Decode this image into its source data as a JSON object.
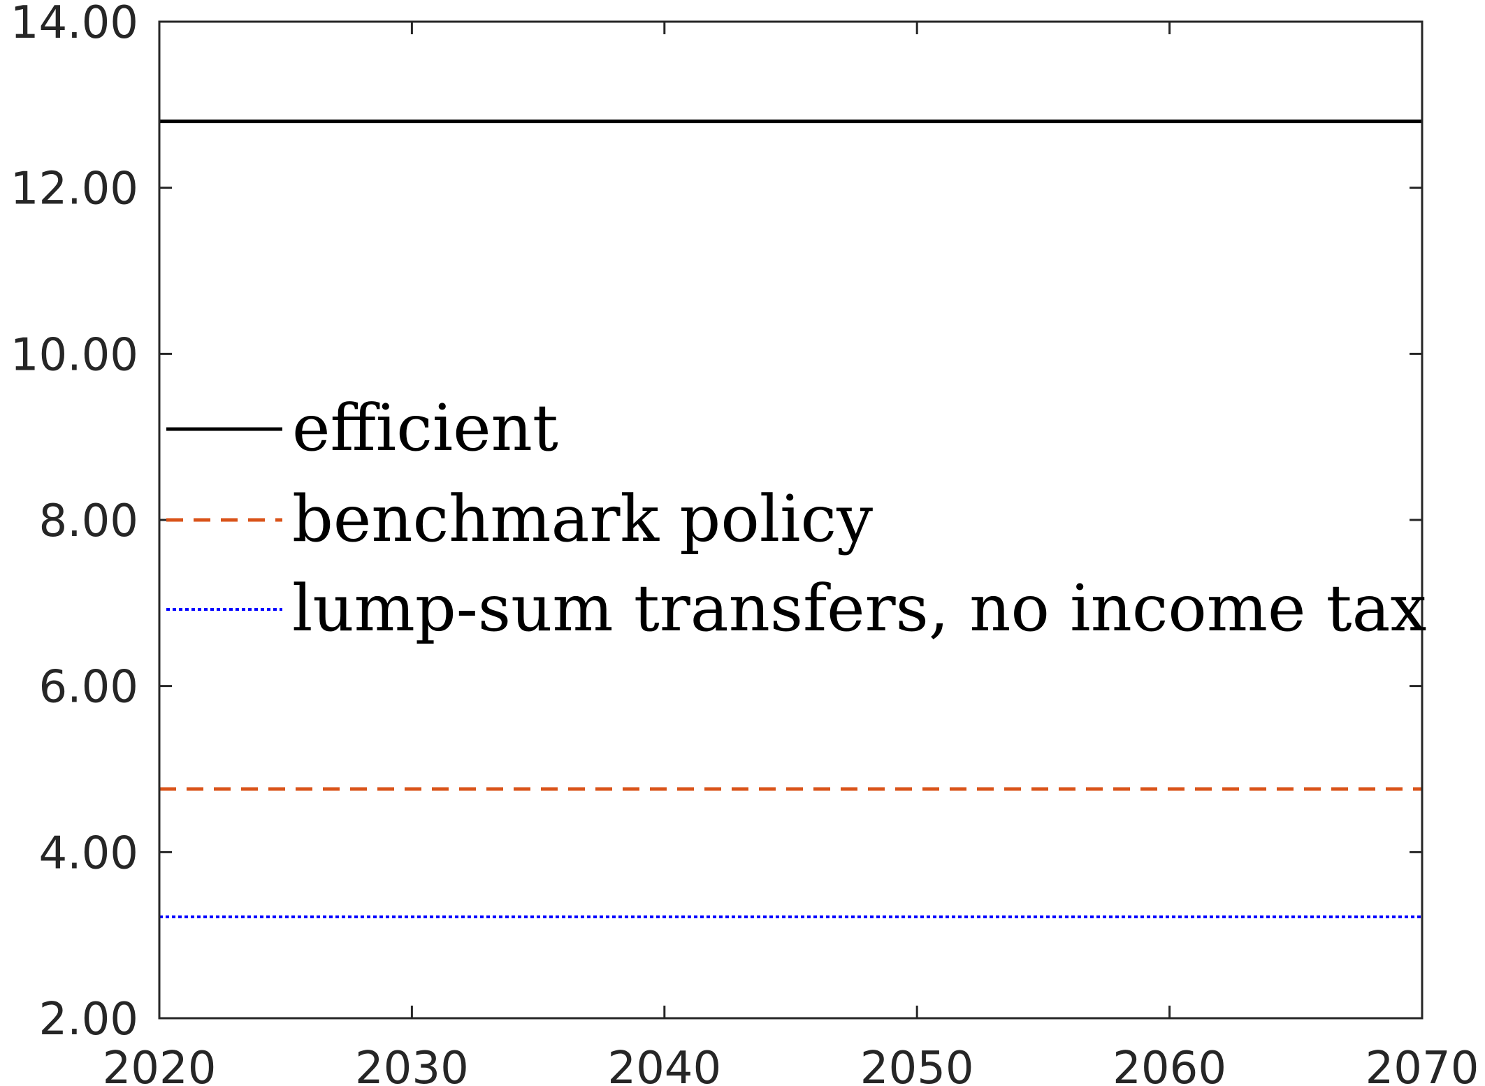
{
  "chart_data": {
    "type": "line",
    "x": [
      2020,
      2070
    ],
    "xlim": [
      2020,
      2070
    ],
    "ylim": [
      2,
      14
    ],
    "xticks": [
      2020,
      2030,
      2040,
      2050,
      2060,
      2070
    ],
    "yticks": [
      2,
      4,
      6,
      8,
      10,
      12,
      14
    ],
    "xtick_labels": [
      "2020",
      "2030",
      "2040",
      "2050",
      "2060",
      "2070"
    ],
    "ytick_labels": [
      "2.00",
      "4.00",
      "6.00",
      "8.00",
      "10.00",
      "12.00",
      "14.00"
    ],
    "grid": false,
    "legend_position": "center-left",
    "series": [
      {
        "name": "efficient",
        "values": [
          12.8,
          12.8
        ],
        "color": "#000000",
        "style": "solid"
      },
      {
        "name": "benchmark policy",
        "values": [
          4.76,
          4.76
        ],
        "color": "#D95319",
        "style": "dashed"
      },
      {
        "name": "lump-sum transfers, no income tax",
        "values": [
          3.22,
          3.22
        ],
        "color": "#0000FF",
        "style": "dotted"
      }
    ]
  }
}
